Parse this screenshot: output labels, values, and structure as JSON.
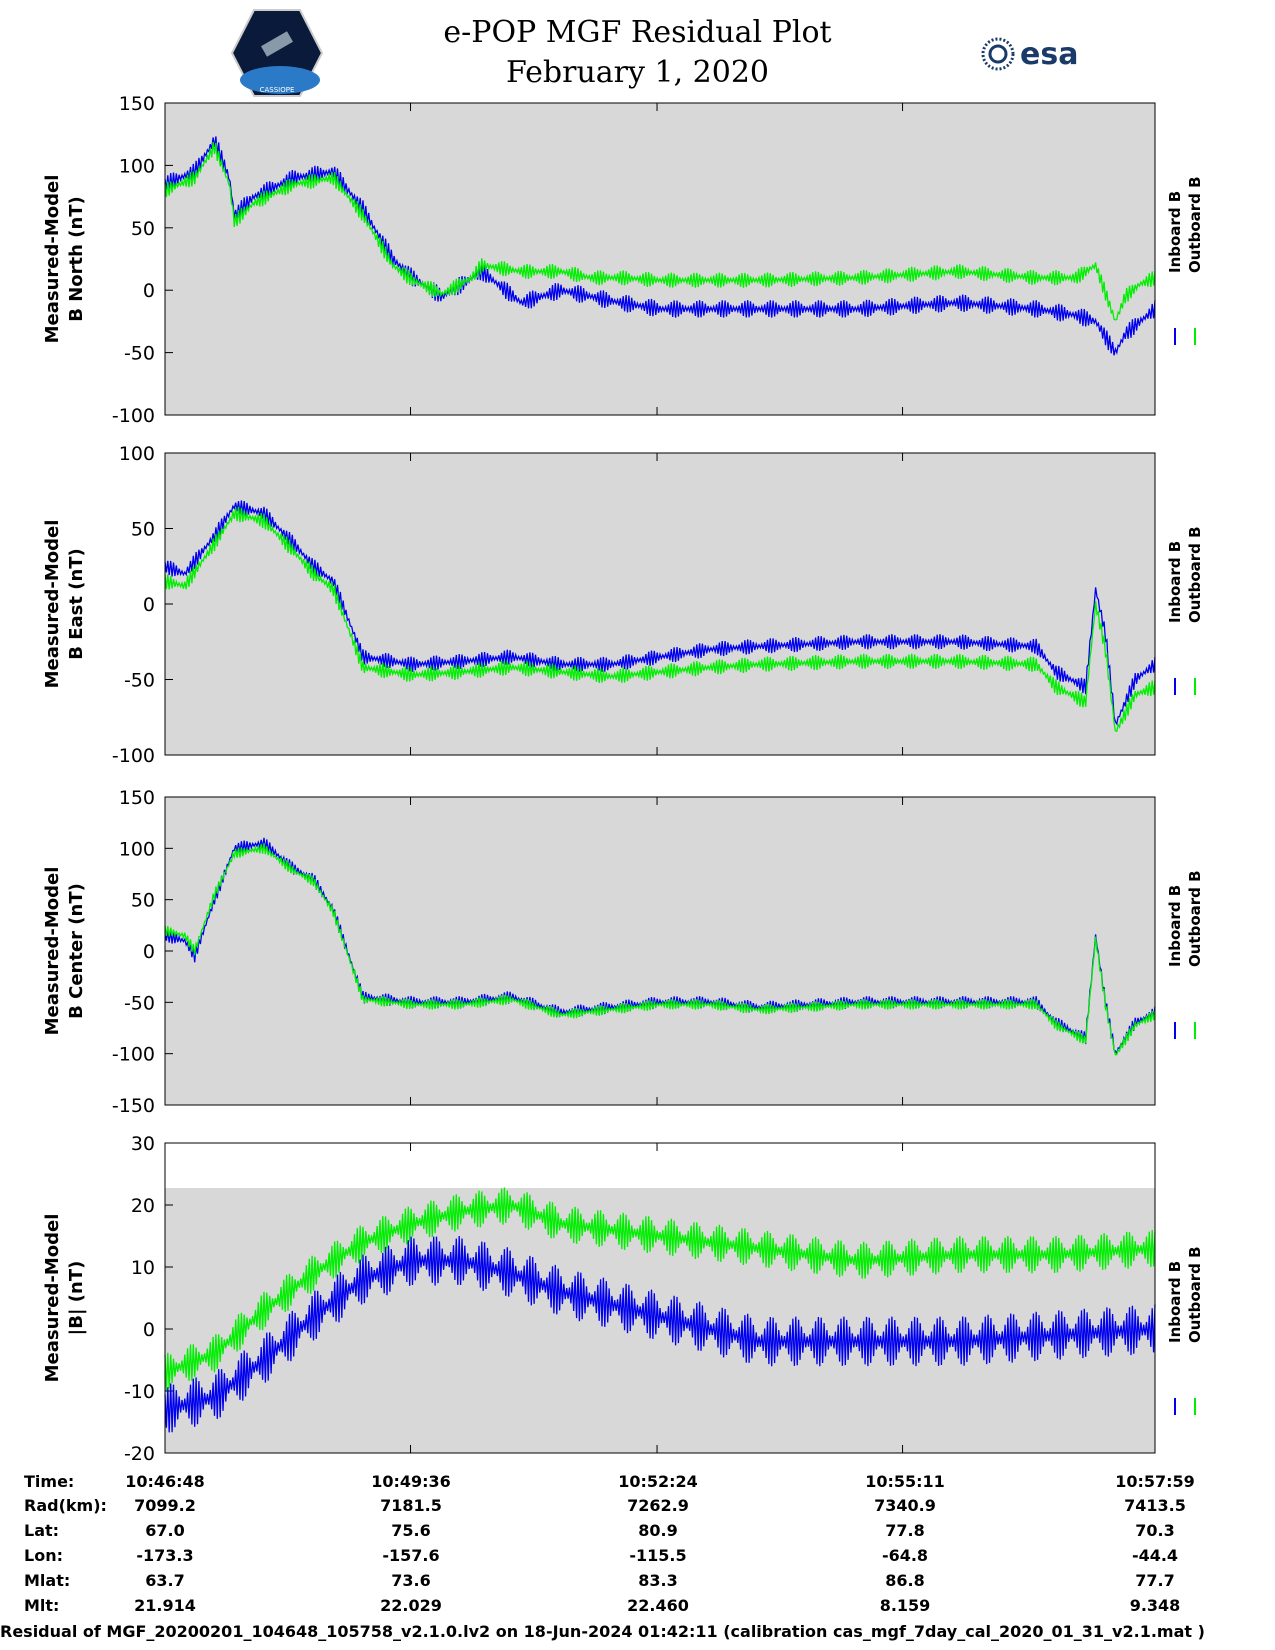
{
  "header": {
    "title": "e-POP MGF Residual Plot",
    "date": "February 1, 2020",
    "logo_left_text": "CASSIOPE",
    "logo_right_text": "esa"
  },
  "colors": {
    "inboard": "#0000ee",
    "outboard": "#00ee00",
    "panel_bg": "#d8d8d8"
  },
  "chart_data": [
    {
      "type": "line",
      "ylabel": [
        "Measured-Model",
        "B North (nT)"
      ],
      "ylim": [
        -100,
        150
      ],
      "yticks": [
        150,
        100,
        50,
        0,
        -50,
        -100
      ],
      "legend": [
        "Inboard B",
        "Outboard B"
      ],
      "series": [
        {
          "name": "Inboard B",
          "x": [
            0,
            0.03,
            0.05,
            0.065,
            0.07,
            0.09,
            0.13,
            0.17,
            0.2,
            0.23,
            0.25,
            0.28,
            0.31,
            0.32,
            0.36,
            0.4,
            0.43,
            0.46,
            0.5,
            0.55,
            0.6,
            0.7,
            0.8,
            0.88,
            0.92,
            0.94,
            0.96,
            0.97,
            0.985,
            1.0
          ],
          "y": [
            85,
            95,
            120,
            90,
            60,
            75,
            90,
            95,
            65,
            25,
            10,
            -5,
            10,
            15,
            -10,
            0,
            -5,
            -10,
            -15,
            -15,
            -15,
            -15,
            -10,
            -15,
            -20,
            -25,
            -50,
            -35,
            -25,
            -15
          ],
          "osc": 7
        },
        {
          "name": "Outboard B",
          "x": [
            0,
            0.03,
            0.05,
            0.065,
            0.07,
            0.09,
            0.13,
            0.17,
            0.2,
            0.23,
            0.25,
            0.28,
            0.31,
            0.32,
            0.36,
            0.4,
            0.43,
            0.46,
            0.5,
            0.55,
            0.6,
            0.7,
            0.8,
            0.88,
            0.92,
            0.94,
            0.96,
            0.97,
            0.985,
            1.0
          ],
          "y": [
            80,
            90,
            115,
            85,
            55,
            70,
            85,
            90,
            60,
            20,
            8,
            -3,
            10,
            20,
            15,
            15,
            10,
            10,
            8,
            8,
            8,
            10,
            15,
            10,
            10,
            20,
            -25,
            -5,
            5,
            10
          ],
          "osc": 6
        }
      ]
    },
    {
      "type": "line",
      "ylabel": [
        "Measured-Model",
        "B East (nT)"
      ],
      "ylim": [
        -100,
        100
      ],
      "yticks": [
        100,
        50,
        0,
        -50,
        -100
      ],
      "legend": [
        "Inboard B",
        "Outboard B"
      ],
      "series": [
        {
          "name": "Inboard B",
          "x": [
            0,
            0.02,
            0.05,
            0.07,
            0.1,
            0.13,
            0.15,
            0.17,
            0.2,
            0.25,
            0.3,
            0.35,
            0.4,
            0.45,
            0.5,
            0.55,
            0.6,
            0.7,
            0.8,
            0.88,
            0.9,
            0.93,
            0.94,
            0.95,
            0.96,
            0.98,
            1.0
          ],
          "y": [
            25,
            20,
            45,
            65,
            60,
            40,
            25,
            15,
            -35,
            -40,
            -38,
            -35,
            -40,
            -40,
            -35,
            -30,
            -28,
            -25,
            -25,
            -28,
            -45,
            -55,
            10,
            -20,
            -80,
            -50,
            -40
          ],
          "osc": 5
        },
        {
          "name": "Outboard B",
          "x": [
            0,
            0.02,
            0.05,
            0.07,
            0.1,
            0.13,
            0.15,
            0.17,
            0.2,
            0.25,
            0.3,
            0.35,
            0.4,
            0.45,
            0.5,
            0.55,
            0.6,
            0.7,
            0.8,
            0.88,
            0.9,
            0.93,
            0.94,
            0.95,
            0.96,
            0.98,
            1.0
          ],
          "y": [
            15,
            12,
            40,
            60,
            55,
            35,
            20,
            10,
            -42,
            -47,
            -45,
            -42,
            -45,
            -48,
            -45,
            -42,
            -40,
            -38,
            -38,
            -40,
            -55,
            -65,
            0,
            -30,
            -85,
            -60,
            -55
          ],
          "osc": 5
        }
      ]
    },
    {
      "type": "line",
      "ylabel": [
        "Measured-Model",
        "B Center (nT)"
      ],
      "ylim": [
        -150,
        150
      ],
      "yticks": [
        150,
        100,
        50,
        0,
        -50,
        -100,
        -150
      ],
      "legend": [
        "Inboard B",
        "Outboard B"
      ],
      "series": [
        {
          "name": "Inboard B",
          "x": [
            0,
            0.02,
            0.03,
            0.05,
            0.07,
            0.1,
            0.13,
            0.15,
            0.17,
            0.2,
            0.25,
            0.3,
            0.35,
            0.4,
            0.45,
            0.5,
            0.55,
            0.6,
            0.7,
            0.8,
            0.88,
            0.9,
            0.93,
            0.94,
            0.95,
            0.96,
            0.98,
            1.0
          ],
          "y": [
            15,
            10,
            -5,
            50,
            100,
            105,
            80,
            70,
            40,
            -45,
            -50,
            -50,
            -45,
            -60,
            -55,
            -50,
            -50,
            -55,
            -50,
            -50,
            -50,
            -70,
            -85,
            15,
            -50,
            -100,
            -70,
            -60
          ],
          "osc": 6
        },
        {
          "name": "Outboard B",
          "x": [
            0,
            0.02,
            0.03,
            0.05,
            0.07,
            0.1,
            0.13,
            0.15,
            0.17,
            0.2,
            0.25,
            0.3,
            0.35,
            0.4,
            0.45,
            0.5,
            0.55,
            0.6,
            0.7,
            0.8,
            0.88,
            0.9,
            0.93,
            0.94,
            0.95,
            0.96,
            0.98,
            1.0
          ],
          "y": [
            20,
            15,
            0,
            55,
            95,
            100,
            78,
            68,
            38,
            -47,
            -52,
            -52,
            -47,
            -62,
            -57,
            -52,
            -52,
            -57,
            -52,
            -52,
            -52,
            -72,
            -87,
            12,
            -52,
            -102,
            -72,
            -62
          ],
          "osc": 5
        }
      ]
    },
    {
      "type": "line",
      "ylabel": [
        "Measured-Model",
        "|B| (nT)"
      ],
      "ylim": [
        -20,
        30
      ],
      "yticks": [
        30,
        20,
        10,
        0,
        -10,
        -20
      ],
      "legend": [
        "Inboard B",
        "Outboard B"
      ],
      "series": [
        {
          "name": "Inboard B",
          "x": [
            0,
            0.05,
            0.1,
            0.15,
            0.2,
            0.25,
            0.3,
            0.35,
            0.4,
            0.5,
            0.6,
            0.7,
            0.8,
            0.9,
            1.0
          ],
          "y": [
            -13,
            -11,
            -5,
            2,
            8,
            11,
            11,
            9,
            6,
            2,
            -2,
            -2,
            -2,
            -1,
            0
          ],
          "osc": 4
        },
        {
          "name": "Outboard B",
          "x": [
            0,
            0.05,
            0.1,
            0.15,
            0.2,
            0.25,
            0.3,
            0.35,
            0.4,
            0.5,
            0.6,
            0.7,
            0.8,
            0.9,
            1.0
          ],
          "y": [
            -7,
            -4,
            3,
            9,
            14,
            17,
            19,
            20,
            17,
            15,
            13,
            11,
            12,
            12,
            13
          ],
          "osc": 3
        }
      ]
    }
  ],
  "info_table": {
    "labels": [
      "Time:",
      "Rad(km):",
      "Lat:",
      "Lon:",
      "Mlat:",
      "Mlt:"
    ],
    "columns": [
      [
        "10:46:48",
        "7099.2",
        "67.0",
        "-173.3",
        "63.7",
        "21.914"
      ],
      [
        "10:49:36",
        "7181.5",
        "75.6",
        "-157.6",
        "73.6",
        "22.029"
      ],
      [
        "10:52:24",
        "7262.9",
        "80.9",
        "-115.5",
        "83.3",
        "22.460"
      ],
      [
        "10:55:11",
        "7340.9",
        "77.8",
        "-64.8",
        "86.8",
        "8.159"
      ],
      [
        "10:57:59",
        "7413.5",
        "70.3",
        "-44.4",
        "77.7",
        "9.348"
      ]
    ]
  },
  "footer": "Residual of MGF_20200201_104648_105758_v2.1.0.lv2 on 18-Jun-2024 01:42:11 (calibration cas_mgf_7day_cal_2020_01_31_v2.1.mat )"
}
